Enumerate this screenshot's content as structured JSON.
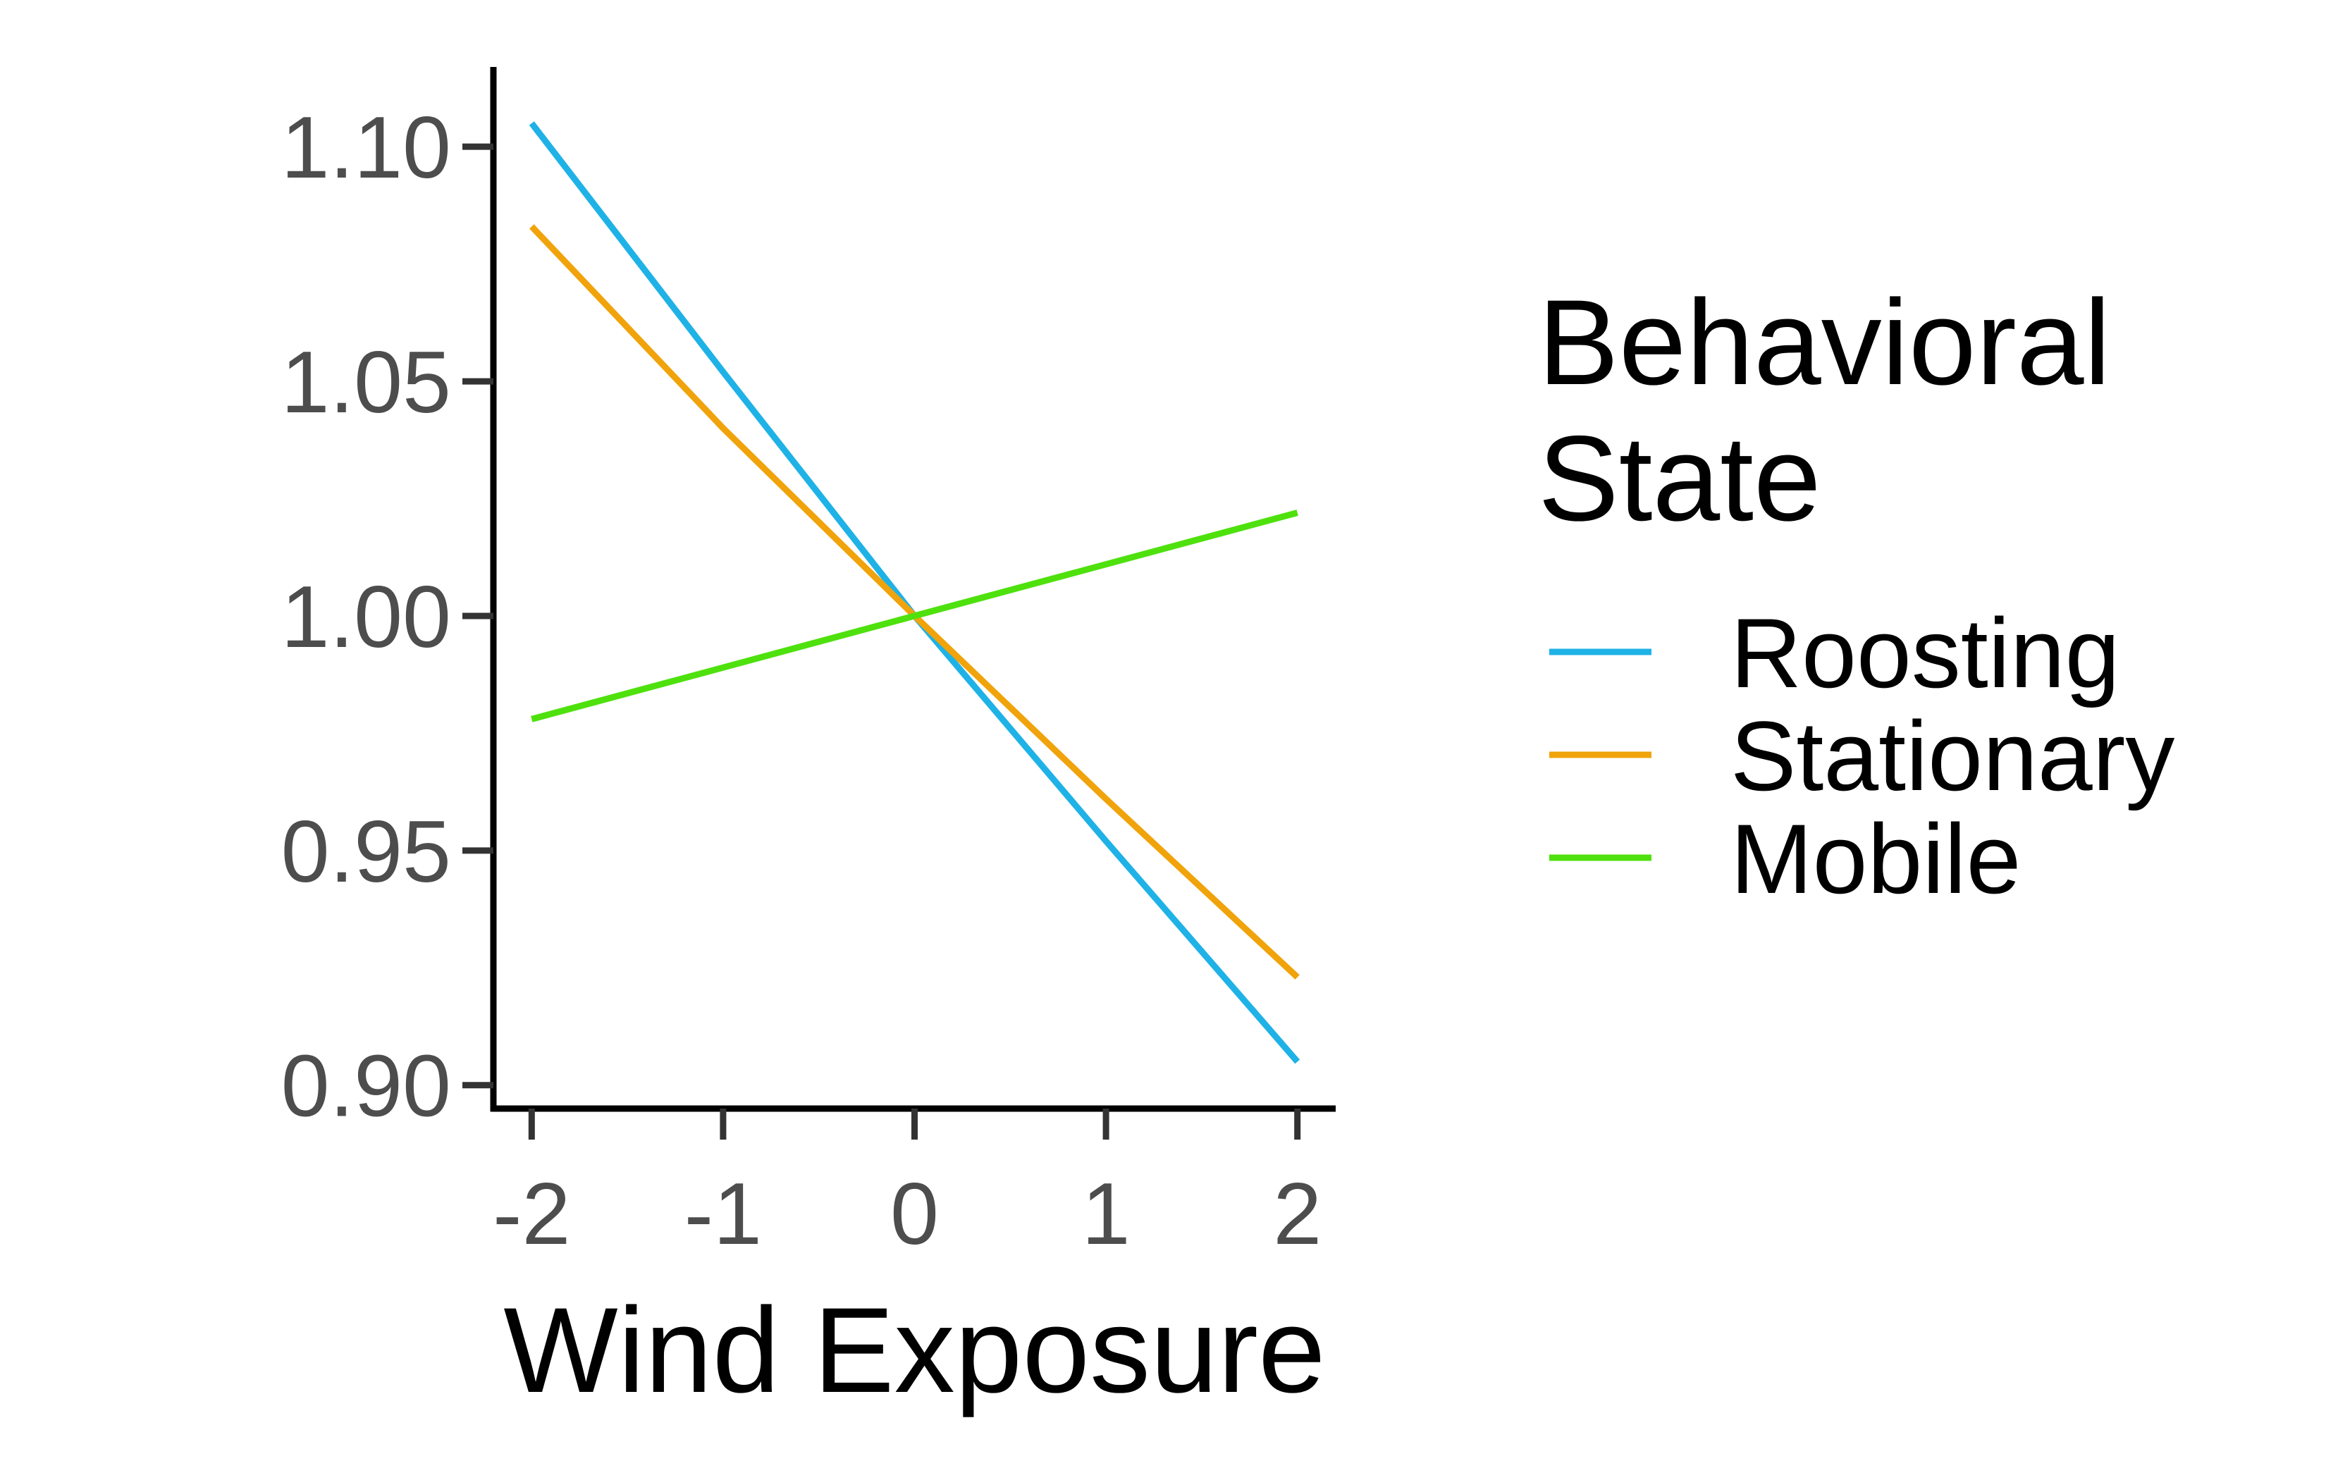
{
  "chart_data": {
    "type": "line",
    "title": "",
    "xlabel": "Wind Exposure",
    "ylabel": "",
    "x": [
      -2,
      2
    ],
    "xlim": [
      -2.2,
      2.2
    ],
    "ylim": [
      0.895,
      1.117
    ],
    "xticks": [
      -2,
      -1,
      0,
      1,
      2
    ],
    "xtick_labels": [
      "-2",
      "-1",
      "0",
      "1",
      "2"
    ],
    "yticks": [
      0.9,
      0.95,
      1.0,
      1.05,
      1.1
    ],
    "ytick_labels": [
      "0.90",
      "0.95",
      "1.00",
      "1.05",
      "1.10"
    ],
    "grid": false,
    "legend": {
      "title": [
        "Behavioral",
        "State"
      ],
      "placement": "right"
    },
    "series": [
      {
        "name": "Roosting",
        "color": "#1fb2e6",
        "x": [
          -2,
          -1,
          0,
          1,
          2
        ],
        "y": [
          1.105,
          1.052,
          1.0,
          0.952,
          0.905
        ]
      },
      {
        "name": "Stationary",
        "color": "#f0a30a",
        "x": [
          -2,
          -1,
          0,
          1,
          2
        ],
        "y": [
          1.083,
          1.04,
          1.0,
          0.961,
          0.923
        ]
      },
      {
        "name": "Mobile",
        "color": "#4ee10d",
        "x": [
          -2,
          -1,
          0,
          1,
          2
        ],
        "y": [
          0.978,
          0.989,
          1.0,
          1.011,
          1.022
        ]
      }
    ]
  }
}
